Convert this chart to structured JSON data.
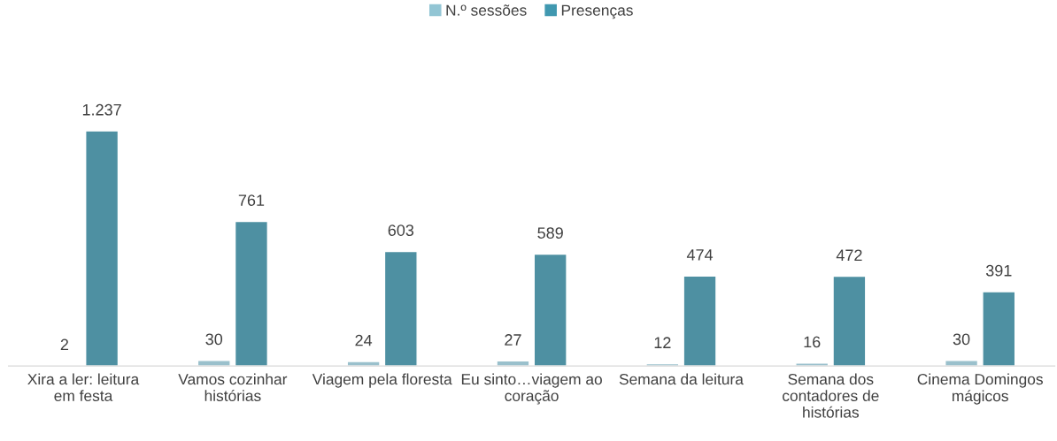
{
  "chart_data": {
    "type": "bar",
    "categories": [
      "Xira a ler: leitura em festa",
      "Vamos cozinhar histórias",
      "Viagem pela floresta",
      "Eu sinto…viagem ao coração",
      "Semana da leitura",
      "Semana dos contadores de histórias",
      "Cinema Domingos mágicos"
    ],
    "series": [
      {
        "name": "N.º sessões",
        "color": "#92c5d4",
        "values": [
          2,
          30,
          24,
          27,
          12,
          16,
          30
        ],
        "value_labels": [
          "2",
          "30",
          "24",
          "27",
          "12",
          "16",
          "30"
        ]
      },
      {
        "name": "Presenças",
        "color": "#4098b0",
        "values": [
          1237,
          761,
          603,
          589,
          474,
          472,
          391
        ],
        "value_labels": [
          "1.237",
          "761",
          "603",
          "589",
          "474",
          "472",
          "391"
        ]
      }
    ],
    "legend": "top",
    "grid": false
  }
}
